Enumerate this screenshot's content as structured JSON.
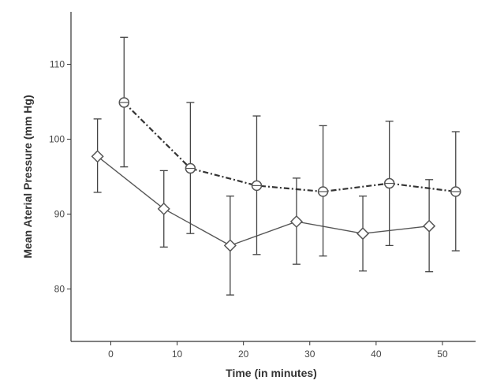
{
  "chart_data": {
    "type": "line",
    "title": "",
    "xlabel": "Time (in minutes)",
    "ylabel": "Mean Aterial Pressure (mm Hg)",
    "xlim": [
      -6,
      55
    ],
    "ylim": [
      73,
      117
    ],
    "xticks": [
      0,
      10,
      20,
      30,
      40,
      50
    ],
    "yticks": [
      80,
      90,
      100,
      110
    ],
    "grid": false,
    "legend": "none",
    "series": [
      {
        "style": "solid",
        "marker": "diamond",
        "color": "#555555",
        "x": [
          -2,
          8,
          18,
          28,
          38,
          48
        ],
        "y": [
          97.7,
          90.7,
          85.8,
          89.0,
          87.4,
          88.4
        ],
        "err_low": [
          92.9,
          85.6,
          79.2,
          83.3,
          82.4,
          82.3
        ],
        "err_high": [
          102.7,
          95.8,
          92.4,
          94.8,
          92.4,
          94.6
        ]
      },
      {
        "style": "dash-dot",
        "marker": "circle",
        "color": "#333333",
        "x": [
          2,
          12,
          22,
          32,
          42,
          52
        ],
        "y": [
          104.9,
          96.1,
          93.8,
          93.0,
          94.1,
          93.0
        ],
        "err_low": [
          96.3,
          87.4,
          84.6,
          84.4,
          85.8,
          85.1
        ],
        "err_high": [
          113.6,
          104.9,
          103.1,
          101.8,
          102.4,
          101.0
        ]
      }
    ]
  }
}
